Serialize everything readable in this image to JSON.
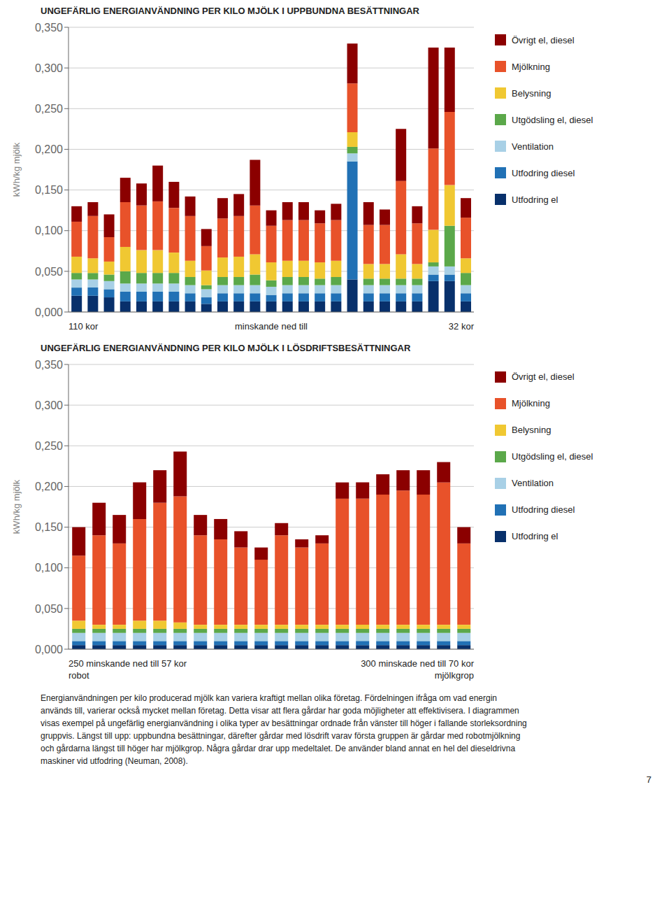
{
  "chart_data": [
    {
      "type": "bar",
      "title": "UNGEFÄRLIG ENERGIANVÄNDNING PER KILO MJÖLK I UPPBUNDNA BESÄTTNINGAR",
      "y_label": "kWh/kg mjölk",
      "stacked": true,
      "grid": true,
      "legend": "right",
      "tick_labels": "y",
      "categories": [
        null,
        null,
        null,
        null,
        null,
        null,
        null,
        null,
        null,
        null,
        null,
        null,
        null,
        null,
        null,
        null,
        null,
        null,
        null,
        null,
        null,
        null,
        null,
        null,
        null
      ],
      "series": [
        {
          "name": "Utfodring el",
          "color": "#08306B",
          "values": [
            0.02,
            0.02,
            0.018,
            0.013,
            0.013,
            0.013,
            0.013,
            0.013,
            0.01,
            0.013,
            0.013,
            0.013,
            0.013,
            0.013,
            0.013,
            0.013,
            0.013,
            0.04,
            0.013,
            0.013,
            0.013,
            0.013,
            0.038,
            0.038,
            0.013
          ]
        },
        {
          "name": "Utfodring diesel",
          "color": "#2171B5",
          "values": [
            0.01,
            0.01,
            0.01,
            0.012,
            0.012,
            0.012,
            0.012,
            0.01,
            0.008,
            0.01,
            0.01,
            0.01,
            0.008,
            0.01,
            0.01,
            0.01,
            0.01,
            0.145,
            0.01,
            0.01,
            0.01,
            0.01,
            0.008,
            0.008,
            0.01
          ]
        },
        {
          "name": "Ventilation",
          "color": "#A8D0E6",
          "values": [
            0.01,
            0.01,
            0.01,
            0.01,
            0.01,
            0.01,
            0.01,
            0.01,
            0.01,
            0.01,
            0.01,
            0.01,
            0.01,
            0.01,
            0.01,
            0.01,
            0.01,
            0.01,
            0.01,
            0.01,
            0.01,
            0.01,
            0.01,
            0.01,
            0.01
          ]
        },
        {
          "name": "Utgödsling el, diesel",
          "color": "#5BA84A",
          "values": [
            0.008,
            0.008,
            0.008,
            0.015,
            0.013,
            0.013,
            0.013,
            0.01,
            0.005,
            0.01,
            0.01,
            0.013,
            0.008,
            0.01,
            0.01,
            0.008,
            0.01,
            0.008,
            0.008,
            0.008,
            0.008,
            0.008,
            0.005,
            0.05,
            0.015
          ]
        },
        {
          "name": "Belysning",
          "color": "#F0C832",
          "values": [
            0.02,
            0.018,
            0.016,
            0.03,
            0.028,
            0.028,
            0.025,
            0.02,
            0.018,
            0.024,
            0.025,
            0.025,
            0.022,
            0.02,
            0.02,
            0.02,
            0.02,
            0.018,
            0.018,
            0.018,
            0.03,
            0.018,
            0.04,
            0.05,
            0.018
          ]
        },
        {
          "name": "Mjölkning",
          "color": "#E8522A",
          "values": [
            0.043,
            0.052,
            0.03,
            0.055,
            0.055,
            0.06,
            0.055,
            0.055,
            0.03,
            0.048,
            0.05,
            0.06,
            0.045,
            0.05,
            0.05,
            0.048,
            0.05,
            0.06,
            0.048,
            0.048,
            0.09,
            0.05,
            0.1,
            0.09,
            0.05
          ]
        },
        {
          "name": "Övrigt el, diesel",
          "color": "#8B0000",
          "values": [
            0.019,
            0.017,
            0.028,
            0.03,
            0.027,
            0.044,
            0.032,
            0.024,
            0.021,
            0.025,
            0.027,
            0.056,
            0.019,
            0.022,
            0.022,
            0.016,
            0.02,
            0.049,
            0.028,
            0.019,
            0.064,
            0.021,
            0.124,
            0.079,
            0.024
          ]
        }
      ],
      "ylim": [
        0,
        0.35
      ],
      "yticks": [
        {
          "value": 0,
          "label": "0,000"
        },
        {
          "value": 0.05,
          "label": "0,050"
        },
        {
          "value": 0.1,
          "label": "0,100"
        },
        {
          "value": 0.15,
          "label": "0,150"
        },
        {
          "value": 0.2,
          "label": "0,200"
        },
        {
          "value": 0.25,
          "label": "0,250"
        },
        {
          "value": 0.3,
          "label": "0,300"
        },
        {
          "value": 0.35,
          "label": "0,350"
        }
      ],
      "annotations": [
        "110 kor",
        "minskande ned till",
        "32 kor"
      ]
    },
    {
      "type": "bar",
      "title": "UNGEFÄRLIG ENERGIANVÄNDNING PER KILO MJÖLK I LÖSDRIFTSBESÄTTNINGAR",
      "y_label": "kWh/kg mjölk",
      "stacked": true,
      "grid": true,
      "legend": "right",
      "tick_labels": "y",
      "categories": [
        null,
        null,
        null,
        null,
        null,
        null,
        null,
        null,
        null,
        null,
        null,
        null,
        null,
        null,
        null,
        null,
        null,
        null,
        null,
        null
      ],
      "series": [
        {
          "name": "Utfodring el",
          "color": "#08306B",
          "values": [
            0.005,
            0.005,
            0.005,
            0.005,
            0.005,
            0.005,
            0.005,
            0.005,
            0.005,
            0.005,
            0.005,
            0.005,
            0.005,
            0.005,
            0.005,
            0.005,
            0.005,
            0.005,
            0.005,
            0.005
          ]
        },
        {
          "name": "Utfodring diesel",
          "color": "#2171B5",
          "values": [
            0.005,
            0.005,
            0.005,
            0.005,
            0.005,
            0.005,
            0.005,
            0.005,
            0.005,
            0.005,
            0.005,
            0.005,
            0.005,
            0.005,
            0.005,
            0.005,
            0.005,
            0.005,
            0.005,
            0.005
          ]
        },
        {
          "name": "Ventilation",
          "color": "#A8D0E6",
          "values": [
            0.01,
            0.01,
            0.01,
            0.01,
            0.01,
            0.01,
            0.01,
            0.01,
            0.01,
            0.01,
            0.01,
            0.01,
            0.01,
            0.01,
            0.01,
            0.01,
            0.01,
            0.01,
            0.01,
            0.01
          ]
        },
        {
          "name": "Utgödsling el, diesel",
          "color": "#5BA84A",
          "values": [
            0.005,
            0.005,
            0.005,
            0.005,
            0.005,
            0.005,
            0.005,
            0.005,
            0.005,
            0.005,
            0.005,
            0.005,
            0.005,
            0.005,
            0.005,
            0.005,
            0.005,
            0.005,
            0.005,
            0.005
          ]
        },
        {
          "name": "Belysning",
          "color": "#F0C832",
          "values": [
            0.01,
            0.005,
            0.005,
            0.01,
            0.01,
            0.008,
            0.005,
            0.005,
            0.005,
            0.005,
            0.005,
            0.005,
            0.005,
            0.005,
            0.005,
            0.005,
            0.005,
            0.005,
            0.005,
            0.005
          ]
        },
        {
          "name": "Mjölkning",
          "color": "#E8522A",
          "values": [
            0.08,
            0.11,
            0.1,
            0.125,
            0.145,
            0.155,
            0.11,
            0.105,
            0.095,
            0.08,
            0.11,
            0.095,
            0.1,
            0.155,
            0.155,
            0.16,
            0.165,
            0.16,
            0.175,
            0.1
          ]
        },
        {
          "name": "Övrigt el, diesel",
          "color": "#8B0000",
          "values": [
            0.035,
            0.04,
            0.035,
            0.045,
            0.04,
            0.055,
            0.025,
            0.025,
            0.02,
            0.015,
            0.015,
            0.01,
            0.01,
            0.02,
            0.02,
            0.025,
            0.025,
            0.03,
            0.025,
            0.02
          ]
        }
      ],
      "ylim": [
        0,
        0.35
      ],
      "yticks": [
        {
          "value": 0,
          "label": "0,000"
        },
        {
          "value": 0.05,
          "label": "0,050"
        },
        {
          "value": 0.1,
          "label": "0,100"
        },
        {
          "value": 0.15,
          "label": "0,150"
        },
        {
          "value": 0.2,
          "label": "0,200"
        },
        {
          "value": 0.25,
          "label": "0,250"
        },
        {
          "value": 0.3,
          "label": "0,300"
        },
        {
          "value": 0.35,
          "label": "0,350"
        }
      ],
      "annotations": [
        "250 minskande ned till 57 kor\nrobot",
        "300 minskade ned till 70 kor\nmjölkgrop"
      ]
    }
  ],
  "annotations": [
    "Energianvändningen per kilo producerad mjölk kan variera kraftigt mellan olika företag. Fördelningen ifråga om vad energin\nanvänds till, varierar också mycket mellan företag. Detta visar att flera gårdar har goda möjligheter att effektivisera. I diagrammen\nvisas exempel på ungefärlig energianvändning i olika typer av besättningar ordnade från vänster till höger i fallande storleksordning\ngruppvis. Längst till upp: uppbundna besättningar, därefter gårdar med lösdrift varav första gruppen är gårdar med robotmjölkning\noch gårdarna längst till höger har mjölkgrop. Några gårdar drar upp medeltalet. De använder bland annat en hel del dieseldrivna\nmaskiner vid utfodring (Neuman, 2008).",
    "7"
  ]
}
